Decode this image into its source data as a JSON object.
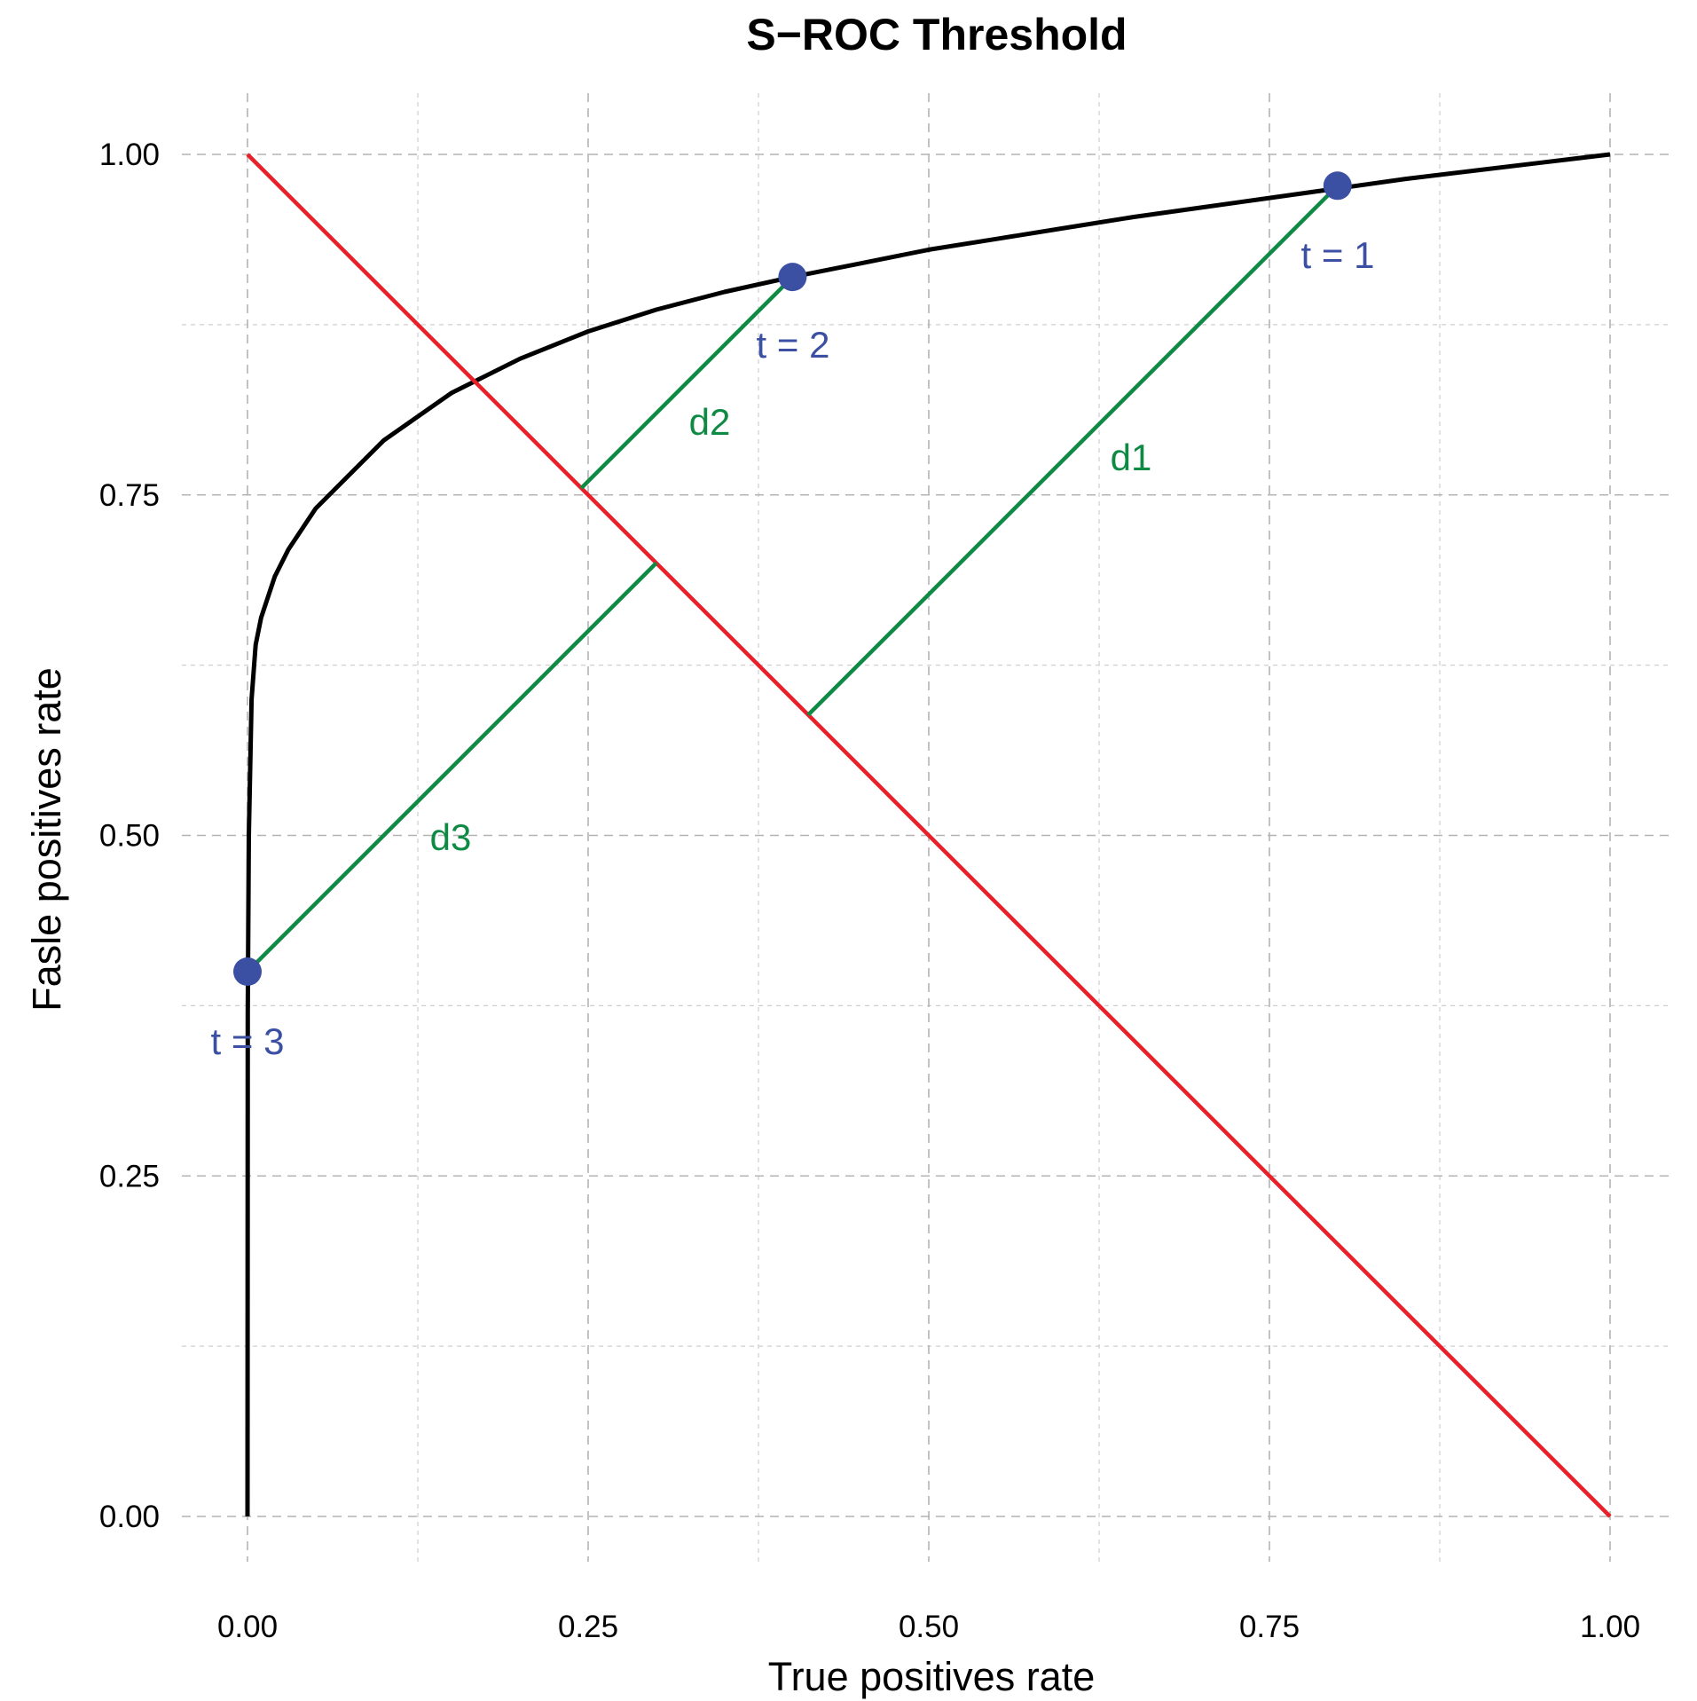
{
  "chart_data": {
    "type": "line",
    "title": "S−ROC Threshold",
    "xlabel": "True positives rate",
    "ylabel": "Fasle positives rate",
    "xlim": [
      -0.05,
      1.05
    ],
    "ylim": [
      -0.05,
      1.05
    ],
    "x_ticks": [
      0.0,
      0.25,
      0.5,
      0.75,
      1.0
    ],
    "x_tick_labels": [
      "0.00",
      "0.25",
      "0.50",
      "0.75",
      "1.00"
    ],
    "y_ticks": [
      0.0,
      0.25,
      0.5,
      0.75,
      1.0
    ],
    "y_tick_labels": [
      "0.00",
      "0.25",
      "0.50",
      "0.75",
      "1.00"
    ],
    "grid": true,
    "colors": {
      "curve": "#000000",
      "diagonal": "#E8202A",
      "distance": "#0F8A44",
      "points": "#3B4FA3"
    },
    "roc_curve": {
      "x": [
        0,
        0.0002,
        0.001,
        0.003,
        0.006,
        0.01,
        0.02,
        0.03,
        0.05,
        0.07,
        0.1,
        0.15,
        0.2,
        0.25,
        0.3,
        0.35,
        0.4,
        0.45,
        0.5,
        0.55,
        0.6,
        0.65,
        0.7,
        0.75,
        0.8,
        0.85,
        0.9,
        0.95,
        1.0
      ],
      "y": [
        0,
        0.37,
        0.5,
        0.6,
        0.64,
        0.66,
        0.69,
        0.71,
        0.74,
        0.76,
        0.79,
        0.825,
        0.85,
        0.87,
        0.886,
        0.899,
        0.91,
        0.92,
        0.93,
        0.938,
        0.946,
        0.954,
        0.961,
        0.968,
        0.975,
        0.982,
        0.988,
        0.994,
        1.0
      ]
    },
    "diagonal": {
      "x": [
        0,
        1
      ],
      "y": [
        1,
        0
      ]
    },
    "thresholds": [
      {
        "label": "t = 1",
        "x": 0.8,
        "y": 0.977
      },
      {
        "label": "t = 2",
        "x": 0.4,
        "y": 0.91
      },
      {
        "label": "t = 3",
        "x": 0.0,
        "y": 0.4
      }
    ],
    "distances": [
      {
        "label": "d1",
        "from": [
          0.8,
          0.977
        ],
        "to": [
          0.4115,
          0.5885
        ]
      },
      {
        "label": "d2",
        "from": [
          0.4,
          0.91
        ],
        "to": [
          0.245,
          0.755
        ]
      },
      {
        "label": "d3",
        "from": [
          0.0,
          0.4
        ],
        "to": [
          0.3,
          0.7
        ]
      }
    ]
  }
}
